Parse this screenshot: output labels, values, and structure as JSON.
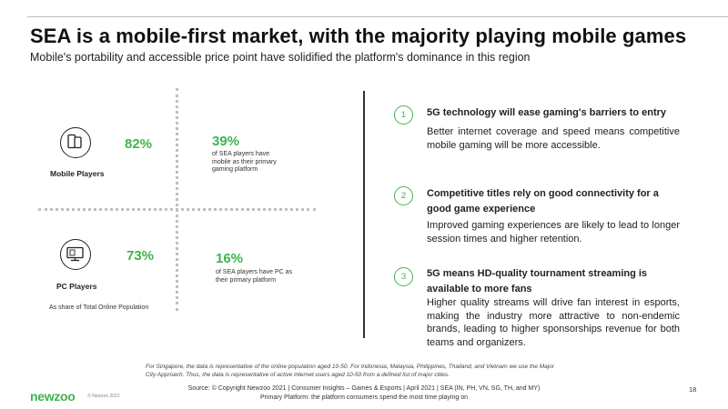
{
  "slide": {
    "title": "SEA is a mobile-first market, with the majority playing mobile games",
    "subtitle": "Mobile's portability and accessible price point have solidified the platform's dominance in this region"
  },
  "left": {
    "mobile": {
      "label": "Mobile Players",
      "share": "82%",
      "primary_pct": "39%",
      "primary_text": "of SEA players have mobile as their primary gaming platform"
    },
    "pc": {
      "label": "PC Players",
      "share": "73%",
      "primary_pct": "16%",
      "primary_text": "of SEA players have PC as their primary platform"
    },
    "note": "As share of Total Online Population"
  },
  "right": {
    "points": [
      {
        "number": "1",
        "heading": "5G technology will ease gaming's barriers to entry",
        "body": "Better internet coverage and speed means competitive mobile gaming will be more accessible."
      },
      {
        "number": "2",
        "heading": "Competitive titles rely on good connectivity for a good game experience",
        "body": "Improved gaming experiences are likely to lead to longer session times and higher retention."
      },
      {
        "number": "3",
        "heading": "5G means HD-quality tournament streaming is available to more fans",
        "body": "Higher quality streams will drive fan interest in esports, making the industry more attractive to non-endemic brands, leading to higher sponsorships revenue for both teams and organizers."
      }
    ]
  },
  "footer": {
    "footnote": "For Singapore, the data is representative of the online population aged 10-50. For Indonesia, Malaysia, Philippines, Thailand, and Vietnam we use the Major City Approach. Thus, the data is representative of active internet users aged 10-50 from a defined list of major cities.",
    "source": "Source: © Copyright Newzoo 2021 | Consumer Insights – Games & Esports | April 2021 | SEA (IN, PH, VN, SG, TH, and MY)",
    "primary_def": "Primary Platform: the platform consumers spend the most time playing on",
    "logo": "newzoo",
    "copyright": "© Newzoo 2021",
    "page": "18"
  },
  "colors": {
    "accent": "#3db54a",
    "text": "#1f1f1f",
    "divider": "#333333"
  }
}
